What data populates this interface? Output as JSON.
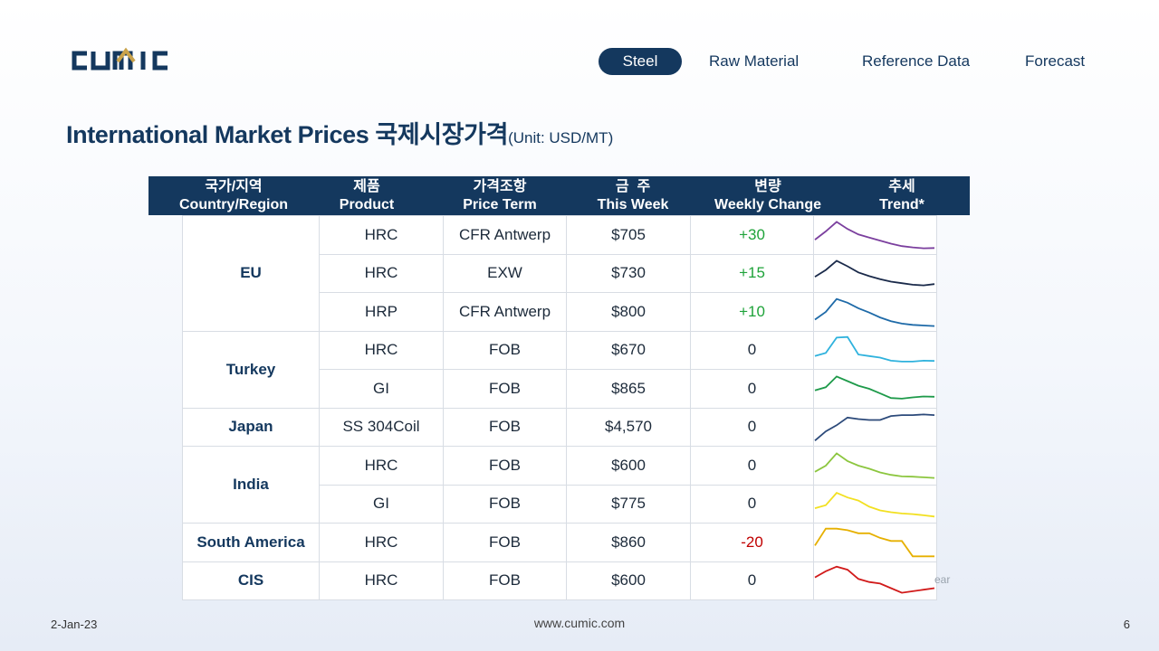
{
  "brand": {
    "logo_text": "CUMIC",
    "accent": "#c9a24a",
    "primary": "#14385e"
  },
  "nav": [
    {
      "label": "Steel",
      "active": true
    },
    {
      "label": "Raw Material",
      "active": false
    },
    {
      "label": "Reference Data",
      "active": false
    },
    {
      "label": "Forecast",
      "active": false
    }
  ],
  "title": {
    "main": "International Market Prices 국제시장가격",
    "unit": "(Unit: USD/MT)"
  },
  "table": {
    "headers": [
      {
        "ko": "국가/지역",
        "en": "Country/Region"
      },
      {
        "ko": "제품",
        "en": "Product"
      },
      {
        "ko": "가격조항",
        "en": "Price Term"
      },
      {
        "ko": "금  주",
        "en": "This Week"
      },
      {
        "ko": "변량",
        "en": "Weekly Change"
      },
      {
        "ko": "추세",
        "en": "Trend*"
      }
    ],
    "groups": [
      {
        "country": "EU",
        "rows": [
          {
            "product": "HRC",
            "term": "CFR Antwerp",
            "price": "$705",
            "change": "+30",
            "dir": "pos",
            "color": "#7b3f9e",
            "trend": [
              0.35,
              0.62,
              0.93,
              0.7,
              0.52,
              0.42,
              0.32,
              0.22,
              0.14,
              0.1,
              0.07,
              0.08
            ]
          },
          {
            "product": "HRC",
            "term": "EXW",
            "price": "$730",
            "change": "+15",
            "dir": "pos",
            "color": "#1a2a4a",
            "trend": [
              0.38,
              0.6,
              0.9,
              0.72,
              0.52,
              0.4,
              0.3,
              0.22,
              0.17,
              0.12,
              0.1,
              0.14
            ]
          },
          {
            "product": "HRP",
            "term": "CFR Antwerp",
            "price": "$800",
            "change": "+10",
            "dir": "pos",
            "color": "#1e6aa8",
            "trend": [
              0.25,
              0.5,
              0.92,
              0.8,
              0.62,
              0.48,
              0.32,
              0.2,
              0.12,
              0.08,
              0.06,
              0.04
            ]
          }
        ]
      },
      {
        "country": "Turkey",
        "rows": [
          {
            "product": "HRC",
            "term": "FOB",
            "price": "$670",
            "change": "0",
            "dir": "neutral",
            "color": "#2fb2dd",
            "trend": [
              0.3,
              0.4,
              0.9,
              0.92,
              0.35,
              0.3,
              0.25,
              0.15,
              0.12,
              0.12,
              0.15,
              0.14
            ]
          },
          {
            "product": "GI",
            "term": "FOB",
            "price": "$865",
            "change": "0",
            "dir": "neutral",
            "color": "#1e9a4a",
            "trend": [
              0.45,
              0.55,
              0.9,
              0.75,
              0.6,
              0.5,
              0.35,
              0.2,
              0.18,
              0.22,
              0.25,
              0.24
            ]
          }
        ]
      },
      {
        "country": "Japan",
        "rows": [
          {
            "product": "SS 304Coil",
            "term": "FOB",
            "price": "$4,570",
            "change": "0",
            "dir": "neutral",
            "color": "#2c4a7a",
            "trend": [
              0.05,
              0.35,
              0.55,
              0.8,
              0.75,
              0.72,
              0.72,
              0.85,
              0.88,
              0.88,
              0.9,
              0.88
            ]
          }
        ]
      },
      {
        "country": "India",
        "rows": [
          {
            "product": "HRC",
            "term": "FOB",
            "price": "$600",
            "change": "0",
            "dir": "neutral",
            "color": "#8cc63f",
            "trend": [
              0.3,
              0.5,
              0.9,
              0.65,
              0.5,
              0.4,
              0.28,
              0.2,
              0.15,
              0.14,
              0.12,
              0.1
            ]
          },
          {
            "product": "GI",
            "term": "FOB",
            "price": "$775",
            "change": "0",
            "dir": "neutral",
            "color": "#f2e021",
            "trend": [
              0.35,
              0.45,
              0.85,
              0.7,
              0.6,
              0.4,
              0.28,
              0.22,
              0.18,
              0.16,
              0.12,
              0.08
            ]
          }
        ]
      },
      {
        "country": "South America",
        "rows": [
          {
            "product": "HRC",
            "term": "FOB",
            "price": "$860",
            "change": "-20",
            "dir": "neg",
            "color": "#e6b000",
            "trend": [
              0.4,
              0.95,
              0.95,
              0.9,
              0.8,
              0.8,
              0.65,
              0.55,
              0.55,
              0.05,
              0.05,
              0.05
            ]
          }
        ]
      },
      {
        "country": "CIS",
        "rows": [
          {
            "product": "HRC",
            "term": "FOB",
            "price": "$600",
            "change": "0",
            "dir": "neutral",
            "color": "#d11a1a",
            "trend": [
              0.6,
              0.8,
              0.95,
              0.85,
              0.55,
              0.45,
              0.4,
              0.25,
              0.1,
              0.15,
              0.2,
              0.25
            ]
          }
        ]
      }
    ]
  },
  "ghost_text": "ear",
  "footer": {
    "date": "2-Jan-23",
    "site": "www.cumic.com",
    "page": "6"
  }
}
